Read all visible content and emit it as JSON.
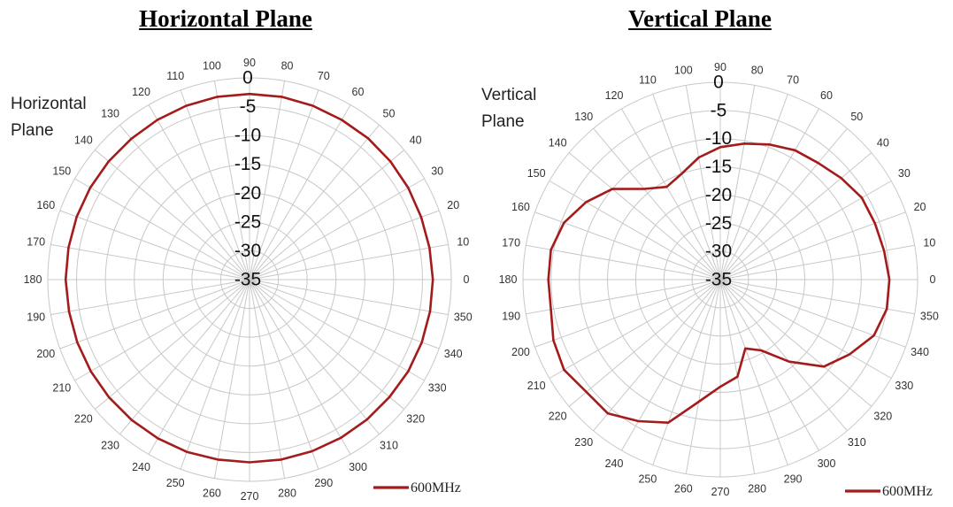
{
  "chart_data": [
    {
      "type": "polar-line",
      "title": "Horizontal Plane",
      "inner_label": [
        "Horizontal",
        "Plane"
      ],
      "radial_axis": {
        "min": -35,
        "max": 0,
        "tick_labels": [
          "0",
          "-5",
          "-10",
          "-15",
          "-20",
          "-25",
          "-30",
          "-35"
        ]
      },
      "angle_tick_labels": [
        "0",
        "10",
        "20",
        "30",
        "40",
        "50",
        "60",
        "70",
        "80",
        "90",
        "100",
        "110",
        "120",
        "130",
        "140",
        "150",
        "160",
        "170",
        "180",
        "190",
        "200",
        "210",
        "220",
        "230",
        "240",
        "250",
        "260",
        "270",
        "280",
        "290",
        "300",
        "310",
        "320",
        "330",
        "340",
        "350"
      ],
      "legend": "600MHz",
      "color": "#a31b1b",
      "series": [
        {
          "angles": [
            0,
            10,
            20,
            30,
            40,
            50,
            60,
            70,
            80,
            90,
            100,
            110,
            120,
            130,
            140,
            150,
            160,
            170,
            180,
            190,
            200,
            210,
            220,
            230,
            240,
            250,
            260,
            270,
            280,
            290,
            300,
            310,
            320,
            330,
            340,
            350
          ],
          "values": [
            -3.2,
            -3.3,
            -3.3,
            -3.2,
            -3.1,
            -3,
            -3,
            -2.9,
            -2.8,
            -2.8,
            -2.8,
            -2.9,
            -3,
            -3.1,
            -3.1,
            -3.1,
            -3.1,
            -3.1,
            -3.1,
            -3.2,
            -3.2,
            -3.2,
            -3.2,
            -3.2,
            -3.2,
            -3.2,
            -3.3,
            -3.3,
            -3.3,
            -3.3,
            -3.3,
            -3.3,
            -3.3,
            -3.2,
            -3.2,
            -3.2
          ]
        }
      ]
    },
    {
      "type": "polar-line",
      "title": "Vertical Plane",
      "inner_label": [
        "Vertical",
        "Plane"
      ],
      "radial_axis": {
        "min": -35,
        "max": 0,
        "tick_labels": [
          "0",
          "-5",
          "-10",
          "-15",
          "-20",
          "-25",
          "-30",
          "-35"
        ]
      },
      "angle_tick_labels": [
        "0",
        "10",
        "20",
        "30",
        "40",
        "50",
        "60",
        "70",
        "80",
        "90",
        "100",
        "110",
        "120",
        "130",
        "140",
        "150",
        "160",
        "170",
        "180",
        "190",
        "200",
        "210",
        "220",
        "230",
        "240",
        "250",
        "260",
        "270",
        "280",
        "290",
        "300",
        "310",
        "320",
        "330",
        "340",
        "350"
      ],
      "legend": "600MHz",
      "color": "#a31b1b",
      "series": [
        {
          "angles": [
            0,
            10,
            20,
            30,
            40,
            50,
            60,
            70,
            80,
            90,
            100,
            110,
            120,
            130,
            140,
            150,
            160,
            170,
            180,
            190,
            200,
            210,
            220,
            230,
            240,
            250,
            260,
            270,
            280,
            290,
            300,
            310,
            320,
            330,
            340,
            350
          ],
          "values": [
            -5,
            -5.5,
            -5.8,
            -6,
            -7,
            -8,
            -8.5,
            -9.5,
            -10.5,
            -11.5,
            -13,
            -15,
            -16,
            -14,
            -10,
            -7.5,
            -5.5,
            -4.5,
            -4.5,
            -4.5,
            -3.5,
            -3,
            -4,
            -4,
            -6,
            -8,
            -13,
            -16,
            -17.5,
            -22,
            -20.5,
            -16,
            -11,
            -8.5,
            -6,
            -5
          ]
        }
      ]
    }
  ]
}
